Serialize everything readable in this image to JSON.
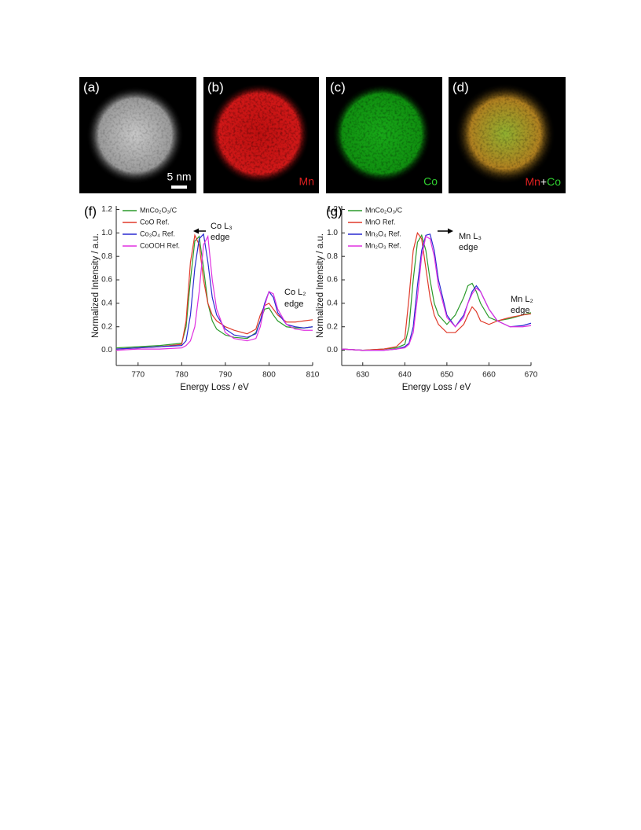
{
  "panels": [
    {
      "label": "(a)",
      "scale_bar": "5 nm"
    },
    {
      "label": "(b)",
      "caption": "Mn"
    },
    {
      "label": "(c)",
      "caption": "Co"
    },
    {
      "label": "(d)",
      "caption": [
        "Mn",
        "+",
        "Co"
      ]
    }
  ],
  "chart_data": [
    {
      "type": "line",
      "panel_label": "(f)",
      "xlabel": "Energy Loss / eV",
      "ylabel": "Normalized Intensity / a.u.",
      "xlim": [
        765,
        810
      ],
      "ylim": [
        -0.13,
        1.23
      ],
      "xticks": [
        770,
        780,
        790,
        800,
        810
      ],
      "yticks": [
        {
          "value": 0,
          "label": "0.0"
        },
        {
          "value": 0.2,
          "label": "0.2"
        },
        {
          "value": 0.4,
          "label": "0.4"
        },
        {
          "value": 0.6,
          "label": "0.6"
        },
        {
          "value": 0.8,
          "label": "0.8"
        },
        {
          "value": 1,
          "label": "1.0"
        },
        {
          "value": 1.2,
          "label": "1.2"
        }
      ],
      "legend": "upper left",
      "annotations": [
        [
          "Co L₃",
          "edge"
        ],
        [
          "Co L₂",
          "edge"
        ]
      ],
      "x": [
        765,
        770,
        775,
        780,
        781,
        782,
        783,
        784,
        785,
        786,
        787,
        788,
        790,
        792,
        795,
        797,
        798,
        799,
        800,
        801,
        802,
        804,
        806,
        808,
        810
      ],
      "series": [
        {
          "name": "MnCo₂O₃/C",
          "color": "#2a9a2a",
          "values": [
            0.02,
            0.03,
            0.04,
            0.06,
            0.2,
            0.6,
            0.93,
            0.97,
            0.7,
            0.4,
            0.25,
            0.18,
            0.13,
            0.11,
            0.1,
            0.15,
            0.25,
            0.35,
            0.36,
            0.3,
            0.25,
            0.2,
            0.19,
            0.19,
            0.2
          ]
        },
        {
          "name": "CoO Ref.",
          "color": "#e03a2a",
          "values": [
            0.01,
            0.02,
            0.03,
            0.05,
            0.25,
            0.75,
            0.98,
            0.9,
            0.6,
            0.4,
            0.3,
            0.25,
            0.2,
            0.17,
            0.14,
            0.18,
            0.3,
            0.38,
            0.4,
            0.35,
            0.3,
            0.24,
            0.24,
            0.25,
            0.26
          ]
        },
        {
          "name": "Co₃O₄ Ref.",
          "color": "#2a2ad0",
          "values": [
            0.01,
            0.02,
            0.03,
            0.04,
            0.08,
            0.3,
            0.7,
            0.95,
            0.99,
            0.75,
            0.45,
            0.3,
            0.18,
            0.13,
            0.11,
            0.14,
            0.25,
            0.4,
            0.5,
            0.45,
            0.32,
            0.22,
            0.2,
            0.19,
            0.2
          ]
        },
        {
          "name": "CoOOH Ref.",
          "color": "#e030e0",
          "values": [
            0.0,
            0.01,
            0.01,
            0.02,
            0.04,
            0.08,
            0.2,
            0.5,
            0.9,
            0.97,
            0.6,
            0.35,
            0.15,
            0.1,
            0.08,
            0.1,
            0.2,
            0.38,
            0.5,
            0.48,
            0.35,
            0.22,
            0.18,
            0.17,
            0.17
          ]
        }
      ]
    },
    {
      "type": "line",
      "panel_label": "(g)",
      "xlabel": "Energy Loss / eV",
      "ylabel": "Normalized Intensity / a.u.",
      "xlim": [
        625,
        670
      ],
      "ylim": [
        -0.13,
        1.23
      ],
      "xticks": [
        630,
        640,
        650,
        660,
        670
      ],
      "yticks": [
        {
          "value": 0,
          "label": "0.0"
        },
        {
          "value": 0.2,
          "label": "0.2"
        },
        {
          "value": 0.4,
          "label": "0.4"
        },
        {
          "value": 0.6,
          "label": "0.6"
        },
        {
          "value": 0.8,
          "label": "0.8"
        },
        {
          "value": 1,
          "label": "1.0"
        },
        {
          "value": 1.2,
          "label": "1.2"
        }
      ],
      "legend": "upper left",
      "annotations": [
        [
          "Mn L₃",
          "edge"
        ],
        [
          "Mn L₂",
          "edge"
        ]
      ],
      "x": [
        625,
        630,
        635,
        638,
        640,
        641,
        642,
        643,
        644,
        645,
        646,
        647,
        648,
        650,
        652,
        654,
        655,
        656,
        657,
        658,
        660,
        662,
        665,
        668,
        670
      ],
      "series": [
        {
          "name": "MnCo₂O₃/C",
          "color": "#2a9a2a",
          "values": [
            0.01,
            0.0,
            0.01,
            0.02,
            0.05,
            0.2,
            0.6,
            0.92,
            0.98,
            0.85,
            0.6,
            0.4,
            0.3,
            0.22,
            0.3,
            0.45,
            0.55,
            0.57,
            0.5,
            0.4,
            0.28,
            0.25,
            0.27,
            0.3,
            0.32
          ]
        },
        {
          "name": "MnO Ref.",
          "color": "#e03a2a",
          "values": [
            0.01,
            0.0,
            0.01,
            0.03,
            0.1,
            0.45,
            0.85,
            1.0,
            0.95,
            0.7,
            0.45,
            0.3,
            0.22,
            0.15,
            0.15,
            0.22,
            0.3,
            0.37,
            0.33,
            0.25,
            0.22,
            0.25,
            0.28,
            0.3,
            0.31
          ]
        },
        {
          "name": "Mn₃O₄ Ref.",
          "color": "#2a2ad0",
          "values": [
            0.01,
            0.0,
            0.0,
            0.01,
            0.03,
            0.06,
            0.2,
            0.55,
            0.85,
            0.98,
            0.99,
            0.85,
            0.6,
            0.3,
            0.2,
            0.3,
            0.4,
            0.5,
            0.55,
            0.5,
            0.35,
            0.25,
            0.2,
            0.21,
            0.23
          ]
        },
        {
          "name": "Mn₂O₃ Ref.",
          "color": "#e030e0",
          "values": [
            0.01,
            0.0,
            0.0,
            0.01,
            0.02,
            0.05,
            0.15,
            0.45,
            0.8,
            0.97,
            0.95,
            0.8,
            0.55,
            0.28,
            0.2,
            0.28,
            0.4,
            0.48,
            0.53,
            0.5,
            0.35,
            0.25,
            0.2,
            0.2,
            0.21
          ]
        }
      ]
    }
  ]
}
